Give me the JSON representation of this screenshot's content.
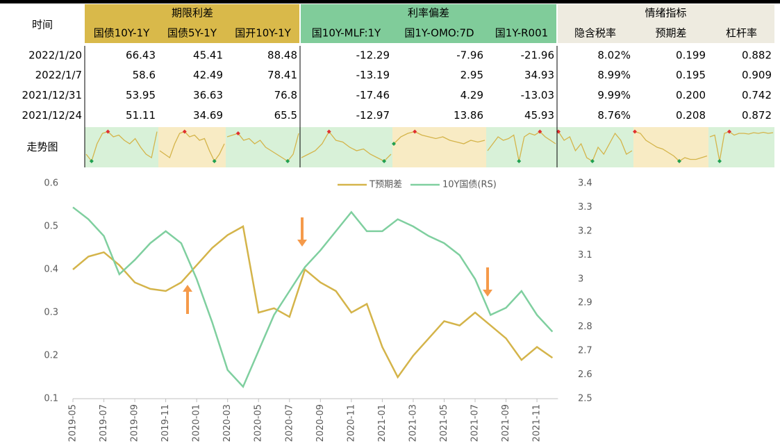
{
  "table": {
    "time_header": "时间",
    "groups": [
      {
        "name": "期限利差",
        "color": "#d9b94a",
        "columns": [
          "国债10Y-1Y",
          "国债5Y-1Y",
          "国开10Y-1Y"
        ]
      },
      {
        "name": "利率偏差",
        "color": "#80cc9a",
        "columns": [
          "国10Y-MLF:1Y",
          "国1Y-OMO:7D",
          "国1Y-R001"
        ]
      },
      {
        "name": "情绪指标",
        "color": "#eeebe0",
        "columns": [
          "隐含税率",
          "预期差",
          "杠杆率"
        ]
      }
    ],
    "rows": [
      {
        "date": "2022/1/20",
        "values": [
          "66.43",
          "45.41",
          "88.48",
          "-12.29",
          "-7.96",
          "-21.96",
          "8.02%",
          "0.199",
          "0.882"
        ]
      },
      {
        "date": "2022/1/7",
        "values": [
          "58.6",
          "42.49",
          "78.41",
          "-13.19",
          "2.95",
          "34.93",
          "8.99%",
          "0.195",
          "0.909"
        ]
      },
      {
        "date": "2021/12/31",
        "values": [
          "53.95",
          "36.63",
          "76.8",
          "-17.46",
          "4.29",
          "-13.03",
          "9.99%",
          "0.200",
          "0.742"
        ]
      },
      {
        "date": "2021/12/24",
        "values": [
          "51.11",
          "34.69",
          "65.5",
          "-12.97",
          "13.86",
          "45.93",
          "8.76%",
          "0.208",
          "0.872"
        ]
      }
    ],
    "trend_label": "走势图",
    "trend_color": "#d4b44a",
    "trend_bg": [
      "#d8f1d8",
      "#f8ebc4",
      "#d8f1d8",
      "#d8f1d8",
      "#f8ebc4",
      "#d8f1d8",
      "#d8f1d8",
      "#f8ebc4",
      "#d8f1d8"
    ],
    "trends": [
      [
        0.3,
        0.1,
        0.6,
        0.9,
        0.95,
        0.8,
        0.85,
        0.7,
        0.6,
        0.75,
        0.5,
        0.3,
        0.2,
        0.95
      ],
      [
        0.4,
        0.3,
        0.2,
        0.6,
        0.9,
        0.95,
        0.8,
        0.85,
        0.7,
        0.75,
        0.4,
        0.1,
        0.3,
        0.6
      ],
      [
        0.8,
        0.85,
        0.9,
        0.7,
        0.75,
        0.6,
        0.7,
        0.5,
        0.4,
        0.3,
        0.2,
        0.1,
        0.3,
        0.9
      ],
      [
        0.2,
        0.3,
        0.4,
        0.6,
        0.95,
        0.7,
        0.65,
        0.5,
        0.4,
        0.45,
        0.3,
        0.2,
        0.1,
        0.3
      ],
      [
        0.6,
        0.8,
        0.9,
        0.95,
        0.85,
        0.8,
        0.75,
        0.8,
        0.7,
        0.65,
        0.6,
        0.7,
        0.65,
        0.7
      ],
      [
        0.4,
        0.6,
        0.8,
        0.7,
        0.75,
        0.85,
        0.1,
        0.8,
        0.9,
        0.85,
        0.95,
        0.8,
        0.7,
        0.6
      ],
      [
        0.95,
        0.7,
        0.8,
        0.4,
        0.6,
        0.2,
        0.1,
        0.5,
        0.3,
        0.6,
        0.9,
        0.7,
        0.3,
        0.4
      ],
      [
        0.95,
        0.9,
        0.7,
        0.6,
        0.5,
        0.45,
        0.35,
        0.25,
        0.1,
        0.2,
        0.15,
        0.15,
        0.2,
        0.25
      ],
      [
        0.8,
        0.85,
        0.1,
        0.9,
        0.95,
        0.85,
        0.9,
        0.9,
        0.88,
        0.92,
        0.9,
        0.93,
        0.9,
        0.92
      ]
    ]
  },
  "chart_data": {
    "type": "line",
    "x": [
      "2019-05",
      null,
      "2019-07",
      null,
      "2019-09",
      null,
      "2019-11",
      null,
      "2020-01",
      null,
      "2020-03",
      null,
      "2020-05",
      null,
      "2020-07",
      null,
      "2020-09",
      null,
      "2020-11",
      null,
      "2021-01",
      null,
      "2021-03",
      null,
      "2021-05",
      null,
      "2021-07",
      null,
      "2021-09",
      null,
      "2021-11",
      null
    ],
    "series": [
      {
        "name": "T预期差",
        "color": "#d4b44a",
        "axis": "y",
        "values": [
          0.4,
          0.43,
          0.44,
          0.41,
          0.37,
          0.355,
          0.35,
          0.37,
          0.41,
          0.45,
          0.48,
          0.5,
          0.3,
          0.31,
          0.29,
          0.4,
          0.37,
          0.35,
          0.3,
          0.32,
          0.22,
          0.15,
          0.2,
          0.24,
          0.28,
          0.27,
          0.3,
          0.27,
          0.24,
          0.19,
          0.22,
          0.195
        ]
      },
      {
        "name": "10Y国债(RS)",
        "color": "#7fcf9f",
        "axis": "y2",
        "values": [
          3.3,
          3.25,
          3.18,
          3.02,
          3.08,
          3.15,
          3.2,
          3.15,
          3.0,
          2.82,
          2.62,
          2.55,
          2.7,
          2.85,
          2.95,
          3.05,
          3.12,
          3.2,
          3.28,
          3.2,
          3.2,
          3.25,
          3.22,
          3.18,
          3.15,
          3.1,
          3.0,
          2.85,
          2.88,
          2.95,
          2.85,
          2.78
        ]
      }
    ],
    "ylim": [
      0.1,
      0.6
    ],
    "yticks": [
      0.1,
      0.2,
      0.3,
      0.4,
      0.5,
      0.6
    ],
    "y2lim": [
      2.5,
      3.4
    ],
    "y2ticks": [
      2.5,
      2.6,
      2.7,
      2.8,
      2.9,
      3,
      3.1,
      3.2,
      3.3,
      3.4
    ],
    "legend": "top"
  }
}
